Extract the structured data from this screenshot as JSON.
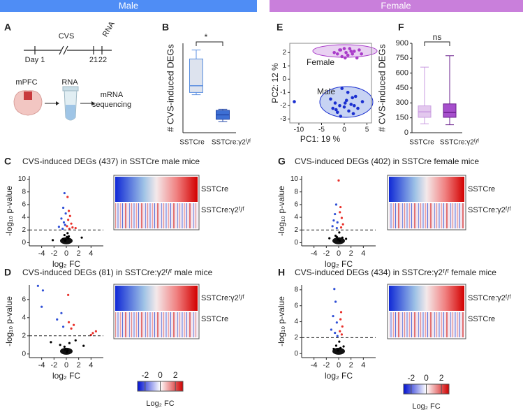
{
  "headers": [
    "Male",
    "Female"
  ],
  "panel_letters": [
    "A",
    "B",
    "E",
    "F",
    "C",
    "D",
    "G",
    "H"
  ],
  "panel_a": {
    "timeline": {
      "cvs": "CVS",
      "rna": "RNA",
      "day1": "Day 1",
      "d21": "21",
      "d22": "22"
    },
    "steps": {
      "region": "mPFC",
      "rna": "RNA",
      "seq1": "mRNA",
      "seq2": "sequencing"
    }
  },
  "chart_data": [
    {
      "type": "box",
      "ylabel": "# CVS-induced DEGs",
      "categories": [
        "SSTCre",
        "SSTCre:γ2ᶠ/ᶠ"
      ],
      "boxes": [
        {
          "min": 170,
          "q1": 180,
          "median": 210,
          "q3": 330,
          "max": 370
        },
        {
          "min": 50,
          "q1": 60,
          "median": 80,
          "q3": 100,
          "max": 105
        }
      ],
      "fills": [
        "#dde3ee",
        "#3d6fd4"
      ],
      "strokes": [
        "#5b8fe0",
        "#2448a8"
      ],
      "ylim": [
        0,
        400
      ],
      "annotation": "*"
    },
    {
      "type": "scatter",
      "xlabel": "PC1: 19 %",
      "ylabel": "PC2: 12 %",
      "xlim": [
        -12,
        6
      ],
      "xticks": [
        -10,
        -5,
        0,
        5
      ],
      "ylim": [
        -3.3,
        2.7
      ],
      "yticks": [
        -3,
        -2,
        -1,
        0,
        1,
        2
      ],
      "series": [
        {
          "name": "Female",
          "color": "#a93cc9",
          "x": [
            -2.2,
            -1.5,
            -1,
            -0.5,
            0,
            0.4,
            0.8,
            1.2,
            1.8,
            2.2,
            2.8,
            3.3,
            3.8,
            0.2,
            1.5,
            -0.8
          ],
          "y": [
            2.0,
            1.9,
            2.2,
            1.7,
            2.3,
            2.0,
            1.8,
            2.3,
            1.9,
            2.1,
            1.6,
            2.2,
            1.9,
            1.6,
            2.1,
            2.2
          ]
        },
        {
          "name": "Male",
          "color": "#1a2fd0",
          "x": [
            -11,
            -3,
            -2.5,
            -2,
            -1.5,
            -1,
            -0.5,
            0,
            0.5,
            1,
            1.5,
            2,
            2.5,
            3,
            4,
            -0.8,
            0.8,
            1.8,
            -1.8,
            0.2,
            2.2
          ],
          "y": [
            -1.7,
            -1.5,
            -2.2,
            -1.8,
            -2.5,
            -2.0,
            -0.7,
            -2.1,
            -1.6,
            -2.4,
            -1.9,
            -2.6,
            -1.3,
            -2.2,
            -1.7,
            -2.8,
            -1.0,
            -1.4,
            -2.3,
            -1.8,
            -2.0
          ]
        }
      ]
    },
    {
      "type": "box",
      "ylabel": "# CVS-induced DEGs",
      "categories": [
        "SSTCre",
        "SSTCre:γ2ᶠ/ᶠ"
      ],
      "boxes": [
        {
          "min": 90,
          "q1": 155,
          "median": 210,
          "q3": 270,
          "max": 660
        },
        {
          "min": 80,
          "q1": 155,
          "median": 205,
          "q3": 290,
          "max": 775
        }
      ],
      "fills": [
        "#e3c8ee",
        "#a64fcc"
      ],
      "strokes": [
        "#c99be0",
        "#6a1f8c"
      ],
      "ylim": [
        0,
        900
      ],
      "yticks": [
        0,
        150,
        300,
        450,
        600,
        750,
        900
      ],
      "annotation": "ns"
    },
    {
      "type": "volcano",
      "title": "CVS-induced DEGs (437) in SSTCre male mice",
      "xlabel": "log₂ FC",
      "ylabel": "-log₁₀ p-value",
      "xlim": [
        -6,
        6
      ],
      "xticks": [
        -4,
        -2,
        0,
        2,
        4
      ],
      "ylim": [
        -0.5,
        10.5
      ],
      "yticks": [
        0,
        2,
        4,
        6,
        8,
        10
      ],
      "threshold": 2,
      "colors": {
        "up": "#e8302a",
        "down": "#2f4fd6",
        "ns": "#000000"
      },
      "heatmap_rows": [
        "SSTCre",
        "SSTCre:γ2ᶠ/ᶠ"
      ],
      "x": [
        -0.3,
        0.2,
        -0.5,
        0.4,
        -0.1,
        0.6,
        -0.8,
        0.3,
        -0.4,
        0.8,
        -0.2,
        0.1,
        -1.2,
        1.0,
        -0.6,
        0.5,
        0.2,
        -0.3,
        0.1,
        -0.1,
        0.3,
        -0.2,
        0.4,
        -0.5,
        2.5,
        -2.2,
        1.5
      ],
      "y": [
        7.8,
        7.2,
        5.5,
        5.0,
        4.6,
        4.2,
        3.8,
        3.6,
        3.2,
        3.0,
        2.8,
        2.6,
        2.5,
        2.4,
        2.2,
        2.2,
        1.5,
        1.2,
        0.9,
        0.5,
        0.7,
        0.3,
        1.0,
        0.6,
        0.8,
        0.4,
        2.3
      ]
    },
    {
      "type": "volcano",
      "title": "CVS-induced DEGs (81) in SSTCre:γ2ᶠ/ᶠ male mice",
      "xlabel": "log₂ FC",
      "ylabel": "-log₁₀ p-value",
      "xlim": [
        -6,
        6
      ],
      "xticks": [
        -4,
        -2,
        0,
        2,
        4
      ],
      "ylim": [
        -0.4,
        7.6
      ],
      "yticks": [
        0,
        2,
        4,
        6
      ],
      "threshold": 2,
      "colors": {
        "up": "#e8302a",
        "down": "#2f4fd6",
        "ns": "#000000"
      },
      "heatmap_rows": [
        "SSTCre:γ2ᶠ/ᶠ",
        "SSTCre"
      ],
      "x": [
        -4.6,
        -4.0,
        -3.8,
        -1.5,
        -0.8,
        -0.5,
        0.3,
        0.4,
        0.8,
        1.2,
        4.3,
        4.8,
        4.0,
        0.5,
        -0.3,
        0.2,
        -1.0,
        1.5,
        -2.5,
        2.8,
        0.1,
        -0.2
      ],
      "y": [
        7.5,
        5.2,
        7.0,
        3.8,
        4.5,
        3.0,
        6.5,
        3.5,
        2.8,
        3.2,
        2.3,
        2.5,
        2.1,
        1.2,
        0.8,
        0.4,
        1.0,
        1.5,
        1.3,
        0.9,
        0.2,
        0.5
      ]
    },
    {
      "type": "volcano",
      "title": "CVS-induced DEGs (402) in SSTCre female mice",
      "xlabel": "log₂ FC",
      "ylabel": "-log₁₀ p-value",
      "xlim": [
        -6,
        6
      ],
      "xticks": [
        -4,
        -2,
        0,
        2,
        4
      ],
      "ylim": [
        -0.5,
        10.5
      ],
      "yticks": [
        0,
        2,
        4,
        6,
        8,
        10
      ],
      "threshold": 2,
      "colors": {
        "up": "#e8302a",
        "down": "#2f4fd6",
        "ns": "#000000"
      },
      "heatmap_rows": [
        "SSTCre",
        "SSTCre:γ2ᶠ/ᶠ"
      ],
      "x": [
        0.0,
        -0.4,
        0.3,
        -0.6,
        0.2,
        -0.8,
        0.5,
        -0.2,
        0.7,
        -1.0,
        0.4,
        -0.3,
        0.1,
        -0.5,
        0.6,
        -0.1,
        0.2,
        -0.3,
        1.2,
        -1.5
      ],
      "y": [
        9.8,
        6.0,
        5.6,
        4.5,
        4.8,
        3.5,
        3.9,
        3.2,
        2.9,
        2.6,
        2.4,
        2.3,
        1.6,
        1.1,
        0.8,
        0.5,
        0.3,
        0.9,
        0.6,
        0.7
      ]
    },
    {
      "type": "volcano",
      "title": "CVS-induced DEGs (434) in SSTCre:γ2ᶠ/ᶠ female mice",
      "xlabel": "log₂ FC",
      "ylabel": "-log₁₀ p-value",
      "xlim": [
        -6,
        6
      ],
      "xticks": [
        -4,
        -2,
        0,
        2,
        4
      ],
      "ylim": [
        -0.5,
        8.6
      ],
      "yticks": [
        0,
        2,
        4,
        6,
        8
      ],
      "threshold": 2,
      "colors": {
        "up": "#e8302a",
        "down": "#2f4fd6",
        "ns": "#000000"
      },
      "heatmap_rows": [
        "SSTCre:γ2ᶠ/ᶠ",
        "SSTCre"
      ],
      "x": [
        -0.7,
        -0.5,
        0.4,
        -0.9,
        0.3,
        -0.3,
        0.6,
        -1.2,
        0.2,
        -0.6,
        0.5,
        -0.2,
        0.1,
        -0.4,
        0.3,
        -0.1,
        0.8,
        -0.8
      ],
      "y": [
        8.1,
        6.5,
        5.2,
        4.7,
        4.3,
        3.9,
        3.4,
        3.0,
        2.8,
        2.6,
        2.4,
        2.2,
        1.5,
        1.0,
        0.7,
        0.4,
        0.9,
        0.6
      ]
    },
    {
      "type": "colorbar",
      "title": "Log₂ FC",
      "lim": [
        -3,
        3
      ],
      "ticks": [
        -2,
        0,
        2
      ]
    },
    {
      "type": "colorbar",
      "title": "Log₂ FC",
      "lim": [
        -3,
        3
      ],
      "ticks": [
        -2,
        0,
        2
      ]
    }
  ]
}
